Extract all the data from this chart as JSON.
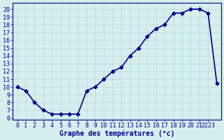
{
  "x": [
    0,
    1,
    2,
    3,
    4,
    5,
    6,
    7,
    8,
    9,
    10,
    11,
    12,
    13,
    14,
    15,
    16,
    17,
    18,
    19,
    20,
    21,
    22,
    23
  ],
  "y": [
    10,
    9.5,
    8,
    7,
    6.5,
    6.5,
    6.5,
    6.5,
    9.5,
    10,
    11,
    12,
    12.5,
    14,
    15,
    16.5,
    17.5,
    18,
    19.5,
    19.5,
    20,
    20,
    19.5,
    10.5
  ],
  "line_color": "#00008B",
  "marker": "D",
  "marker_size": 2.5,
  "bg_color": "#d5efef",
  "grid_color": "#b0d8d8",
  "xlabel": "Graphe des températures (°c)",
  "xlabel_fontsize": 7,
  "ylim": [
    5.8,
    20.8
  ],
  "xlim": [
    -0.5,
    23.5
  ],
  "title_color": "#00008B",
  "tick_fontsize": 6,
  "line_width": 1.2,
  "x_tick_positions": [
    0,
    1,
    2,
    3,
    4,
    5,
    6,
    7,
    8,
    9,
    10,
    11,
    12,
    13,
    14,
    15,
    16,
    17,
    18,
    19,
    20,
    21,
    22
  ],
  "x_tick_labels": [
    "0",
    "1",
    "2",
    "3",
    "4",
    "5",
    "6",
    "7",
    "8",
    "9",
    "10",
    "11",
    "12",
    "13",
    "14",
    "15",
    "16",
    "17",
    "18",
    "19",
    "20",
    "21",
    "2223"
  ],
  "y_tick_positions": [
    6,
    7,
    8,
    9,
    10,
    11,
    12,
    13,
    14,
    15,
    16,
    17,
    18,
    19,
    20
  ],
  "y_tick_labels": [
    "6",
    "7",
    "8",
    "9",
    "10",
    "11",
    "12",
    "13",
    "14",
    "15",
    "16",
    "17",
    "18",
    "19",
    "20"
  ]
}
